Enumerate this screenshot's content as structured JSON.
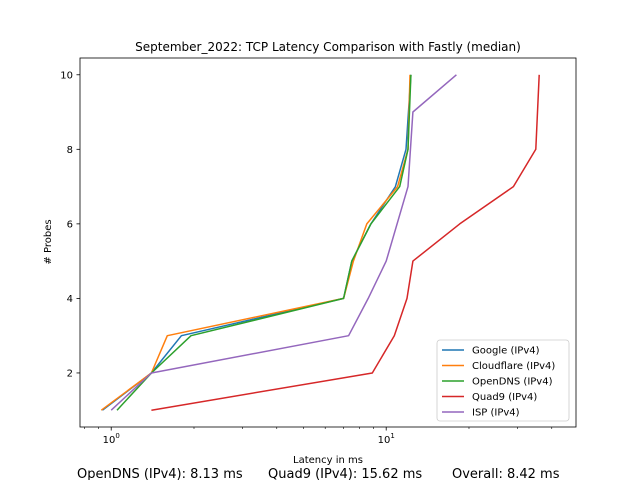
{
  "chart_data": {
    "type": "line",
    "title": "September_2022: TCP Latency Comparison with Fastly (median)",
    "xlabel": "Latency in ms",
    "ylabel": "# Probes",
    "xscale": "log",
    "xlim": [
      0.77,
      49
    ],
    "ylim": [
      0.55,
      10.45
    ],
    "xticks": [
      {
        "value": 1,
        "label": "10^0"
      },
      {
        "value": 10,
        "label": "10^1"
      }
    ],
    "yticks": [
      2,
      4,
      6,
      8,
      10
    ],
    "grid": false,
    "legend_position": "lower-right",
    "series": [
      {
        "name": "Google (IPv4)",
        "color": "#1f77b4",
        "x": [
          0.93,
          1.4,
          1.8,
          7.0,
          7.5,
          8.8,
          10.8,
          11.8,
          12.3
        ],
        "y": [
          1,
          2,
          3,
          4,
          5,
          6,
          7,
          8,
          10
        ]
      },
      {
        "name": "Cloudflare (IPv4)",
        "color": "#ff7f0e",
        "x": [
          0.92,
          1.4,
          1.6,
          7.0,
          7.6,
          8.5,
          11.0,
          12.0,
          12.2
        ],
        "y": [
          1,
          2,
          3,
          4,
          5,
          6,
          7,
          8,
          10
        ]
      },
      {
        "name": "OpenDNS (IPv4)",
        "color": "#2ca02c",
        "x": [
          1.05,
          1.4,
          1.95,
          7.0,
          7.5,
          8.8,
          11.2,
          12.0,
          12.3
        ],
        "y": [
          1,
          2,
          3,
          4,
          5,
          6,
          7,
          8,
          10
        ]
      },
      {
        "name": "Quad9 (IPv4)",
        "color": "#d62728",
        "x": [
          1.4,
          8.9,
          10.7,
          11.9,
          12.5,
          18.5,
          29.0,
          35.0,
          36.0
        ],
        "y": [
          1,
          2,
          3,
          4,
          5,
          6,
          7,
          8,
          10
        ]
      },
      {
        "name": "ISP (IPv4)",
        "color": "#9467bd",
        "x": [
          1.0,
          1.4,
          7.3,
          8.6,
          10.0,
          12.0,
          12.5,
          18.0
        ],
        "y": [
          1,
          2,
          3,
          4,
          5,
          7,
          9,
          10
        ]
      }
    ]
  },
  "footer": {
    "opendns": "OpenDNS (IPv4): 8.13 ms",
    "quad9": "Quad9 (IPv4): 15.62 ms",
    "overall": "Overall: 8.42 ms"
  }
}
